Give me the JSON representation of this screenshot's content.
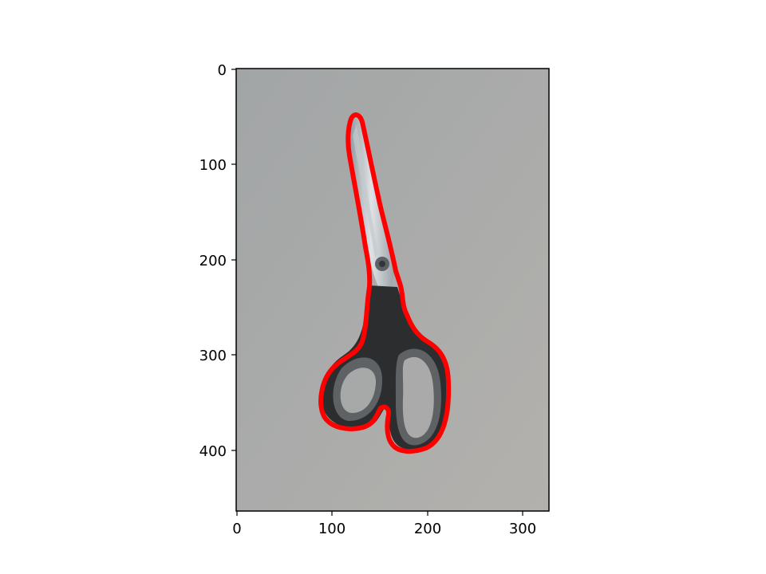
{
  "figure": {
    "image_subject": "scissors",
    "image_width": 327,
    "image_height": 463,
    "x_ticks": [
      0,
      100,
      200,
      300
    ],
    "y_ticks": [
      0,
      100,
      200,
      300,
      400
    ],
    "x_tick_labels": [
      "0",
      "100",
      "200",
      "300"
    ],
    "y_tick_labels": [
      "0",
      "100",
      "200",
      "300",
      "400"
    ],
    "contour_color": "#ff0000",
    "background_color": "#a9aaa8"
  }
}
